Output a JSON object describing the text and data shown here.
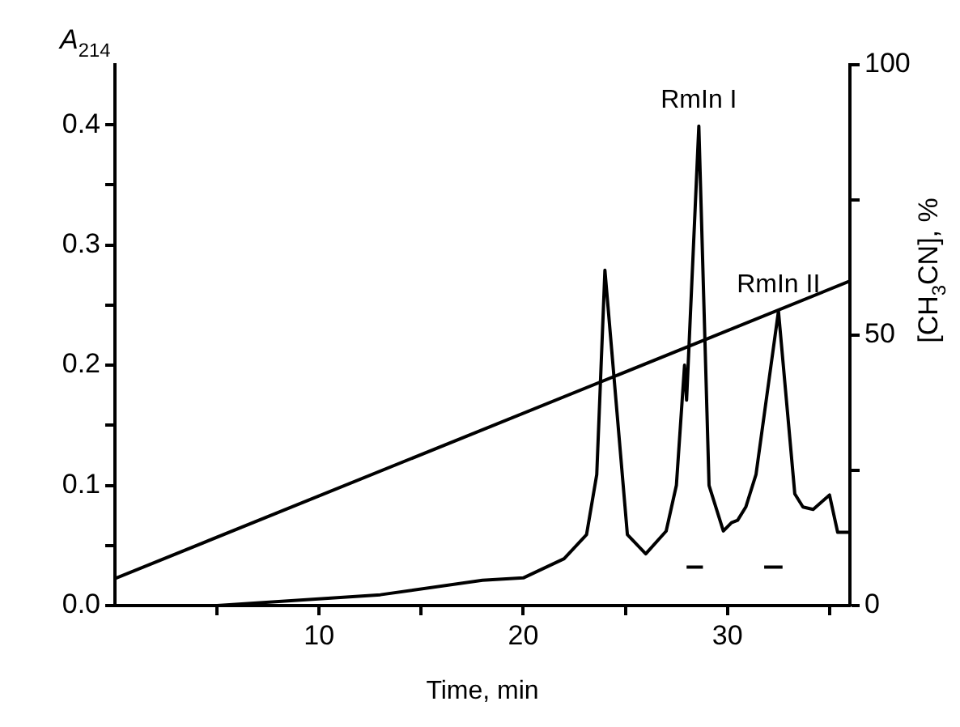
{
  "chart_data": {
    "type": "line",
    "xlabel": "Time, min",
    "ylabel": "A$_{214}$",
    "y2label": "[CH$_{3}$CN], %",
    "marker": "none",
    "grid": false,
    "legend": false,
    "xlim": [
      0,
      36
    ],
    "xticks": [
      {
        "value": 5,
        "label": null
      },
      10,
      {
        "value": 15,
        "label": null
      },
      20,
      {
        "value": 25,
        "label": null
      },
      30,
      {
        "value": 35,
        "label": null
      }
    ],
    "ylim": [
      0,
      0.45
    ],
    "yticks": [
      {
        "value": 0,
        "label": "0.0"
      },
      {
        "value": 0.05,
        "label": null
      },
      0.1,
      {
        "value": 0.15,
        "label": null
      },
      0.2,
      {
        "value": 0.25,
        "label": null
      },
      0.3,
      {
        "value": 0.35,
        "label": null
      },
      0.4
    ],
    "y2lim": [
      0,
      100
    ],
    "y2ticks": [
      0,
      {
        "value": 25,
        "label": null
      },
      50,
      {
        "value": 75,
        "label": null
      },
      100
    ],
    "series": [
      {
        "color": "#000000",
        "x": [
          5,
          13,
          18,
          20,
          22,
          23.1,
          23.6,
          24,
          25.1,
          26,
          27,
          27.5,
          27.9,
          28,
          28.6,
          29.1,
          29.8,
          30.2,
          30.5,
          30.9,
          31.4,
          32.5,
          33.3,
          33.7,
          34.2,
          35,
          35.4,
          36
        ],
        "values": [
          0,
          0.009,
          0.021,
          0.023,
          0.039,
          0.059,
          0.109,
          0.279,
          0.059,
          0.043,
          0.062,
          0.1,
          0.2,
          0.171,
          0.399,
          0.1,
          0.062,
          0.069,
          0.071,
          0.082,
          0.109,
          0.245,
          0.093,
          0.082,
          0.08,
          0.092,
          0.061,
          0.061
        ]
      },
      {
        "color": "#000000",
        "axis": "y2",
        "x": [
          0,
          36
        ],
        "values": [
          5,
          60
        ]
      },
      {
        "color": "#000000",
        "x": [
          28,
          28.8
        ],
        "values": [
          0.032,
          0.032
        ]
      },
      {
        "color": "#000000",
        "x": [
          31.8,
          32.7
        ],
        "values": [
          0.032,
          0.032
        ]
      }
    ],
    "annotations": [
      {
        "text": "RmIn I",
        "x": 28.6,
        "y": 0.399
      },
      {
        "text": "RmIn II",
        "x": 32.5,
        "y": 0.245
      }
    ]
  }
}
